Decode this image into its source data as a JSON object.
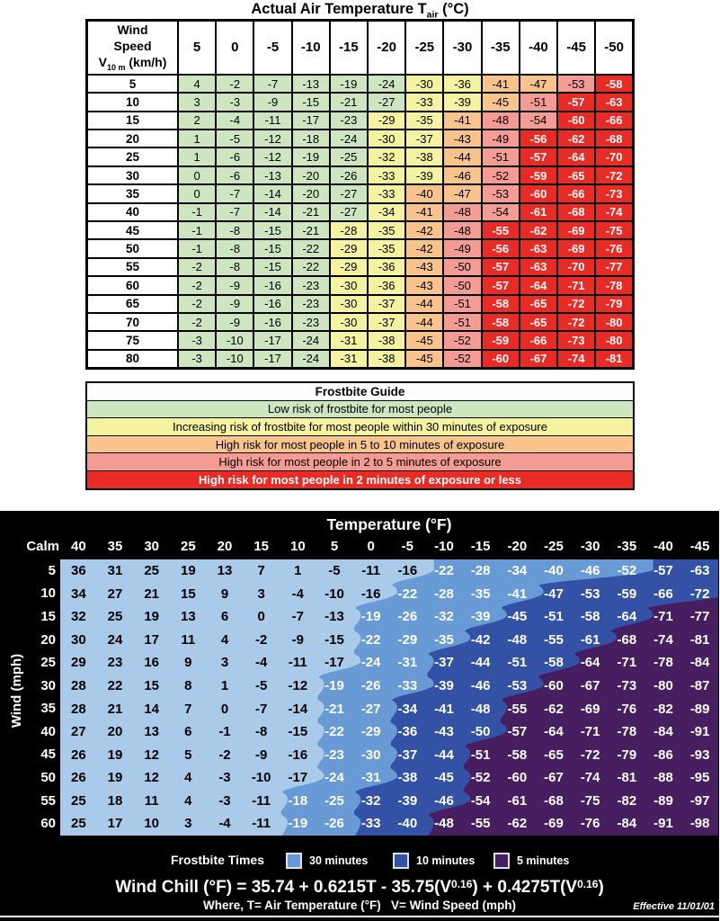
{
  "celsius_section": {
    "title_prefix": "Actual Air Temperature T",
    "title_sub": "air",
    "title_suffix": " (°C)",
    "corner_line1": "Wind",
    "corner_line2": "Speed",
    "corner_v": "V",
    "corner_v_sub": "10 m",
    "corner_v_suffix": " (km/h)",
    "risk_colors": {
      "low": "#cde6c0",
      "increasing": "#f5f2a0",
      "high_5_10": "#f8c48c",
      "high_2_5": "#f49b94",
      "high_2": "#e92b25"
    },
    "risk_thresholds": [
      {
        "min": -27,
        "key": "low"
      },
      {
        "min": -39,
        "key": "increasing"
      },
      {
        "min": -47,
        "key": "high_5_10"
      },
      {
        "min": -54,
        "key": "high_2_5"
      },
      {
        "min": -9999,
        "key": "high_2"
      }
    ]
  },
  "frostbite_guide": {
    "title": "Frostbite Guide",
    "rows": [
      {
        "label": "Low risk of frostbite for most people",
        "key": "low"
      },
      {
        "label": "Increasing risk of frostbite for most people within 30 minutes of exposure",
        "key": "increasing"
      },
      {
        "label": "High risk for most people in 5 to 10 minutes of exposure",
        "key": "high_5_10"
      },
      {
        "label": "High risk for most people in 2 to 5 minutes of exposure",
        "key": "high_2_5"
      },
      {
        "label": "High risk for most people in 2 minutes of exposure or less",
        "key": "high_2"
      }
    ]
  },
  "fahrenheit_section": {
    "zone_colors": {
      "base": "#a9cbe9",
      "thirty": "#689bd5",
      "ten": "#3452a5",
      "five": "#471f60"
    },
    "legend_title": "Frostbite Times",
    "legend_items": [
      {
        "label": "30 minutes",
        "key": "thirty"
      },
      {
        "label": "10 minutes",
        "key": "ten"
      },
      {
        "label": "5 minutes",
        "key": "five"
      }
    ],
    "formula_parts": [
      "Wind Chill (°F) = 35.74 + 0.6215T - 35.75(V",
      "0.16",
      ") + 0.4275T(V",
      "0.16",
      ")"
    ],
    "where_line": "Where, T= Air Temperature (°F)   V= Wind Speed (mph)",
    "effective": "Effective 11/01/01"
  },
  "chart_data": [
    {
      "type": "heatmap",
      "title": "Actual Air Temperature Tair (°C)",
      "ylabel": "Wind Speed V10 m (km/h)",
      "columns": [
        5,
        0,
        -5,
        -10,
        -15,
        -20,
        -25,
        -30,
        -35,
        -40,
        -45,
        -50
      ],
      "rows": [
        5,
        10,
        15,
        20,
        25,
        30,
        35,
        40,
        45,
        50,
        55,
        60,
        65,
        70,
        75,
        80
      ],
      "values": [
        [
          4,
          -2,
          -7,
          -13,
          -19,
          -24,
          -30,
          -36,
          -41,
          -47,
          -53,
          -58
        ],
        [
          3,
          -3,
          -9,
          -15,
          -21,
          -27,
          -33,
          -39,
          -45,
          -51,
          -57,
          -63
        ],
        [
          2,
          -4,
          -11,
          -17,
          -23,
          -29,
          -35,
          -41,
          -48,
          -54,
          -60,
          -66
        ],
        [
          1,
          -5,
          -12,
          -18,
          -24,
          -30,
          -37,
          -43,
          -49,
          -56,
          -62,
          -68
        ],
        [
          1,
          -6,
          -12,
          -19,
          -25,
          -32,
          -38,
          -44,
          -51,
          -57,
          -64,
          -70
        ],
        [
          0,
          -6,
          -13,
          -20,
          -26,
          -33,
          -39,
          -46,
          -52,
          -59,
          -65,
          -72
        ],
        [
          0,
          -7,
          -14,
          -20,
          -27,
          -33,
          -40,
          -47,
          -53,
          -60,
          -66,
          -73
        ],
        [
          -1,
          -7,
          -14,
          -21,
          -27,
          -34,
          -41,
          -48,
          -54,
          -61,
          -68,
          -74
        ],
        [
          -1,
          -8,
          -15,
          -21,
          -28,
          -35,
          -42,
          -48,
          -55,
          -62,
          -69,
          -75
        ],
        [
          -1,
          -8,
          -15,
          -22,
          -29,
          -35,
          -42,
          -49,
          -56,
          -63,
          -69,
          -76
        ],
        [
          -2,
          -8,
          -15,
          -22,
          -29,
          -36,
          -43,
          -50,
          -57,
          -63,
          -70,
          -77
        ],
        [
          -2,
          -9,
          -16,
          -23,
          -30,
          -36,
          -43,
          -50,
          -57,
          -64,
          -71,
          -78
        ],
        [
          -2,
          -9,
          -16,
          -23,
          -30,
          -37,
          -44,
          -51,
          -58,
          -65,
          -72,
          -79
        ],
        [
          -2,
          -9,
          -16,
          -23,
          -30,
          -37,
          -44,
          -51,
          -58,
          -65,
          -72,
          -80
        ],
        [
          -3,
          -10,
          -17,
          -24,
          -31,
          -38,
          -45,
          -52,
          -59,
          -66,
          -73,
          -80
        ],
        [
          -3,
          -10,
          -17,
          -24,
          -31,
          -38,
          -45,
          -52,
          -60,
          -67,
          -74,
          -81
        ]
      ],
      "color_scale": [
        {
          "range": ">= -27",
          "color": "#cde6c0",
          "meaning": "Low risk of frostbite for most people"
        },
        {
          "range": "-28 to -39",
          "color": "#f5f2a0",
          "meaning": "Increasing risk of frostbite for most people within 30 minutes of exposure"
        },
        {
          "range": "-40 to -47",
          "color": "#f8c48c",
          "meaning": "High risk for most people in 5 to 10 minutes of exposure"
        },
        {
          "range": "-48 to -54",
          "color": "#f49b94",
          "meaning": "High risk for most people in 2 to 5 minutes of exposure"
        },
        {
          "range": "<= -55",
          "color": "#e92b25",
          "meaning": "High risk for most people in 2 minutes of exposure or less"
        }
      ]
    },
    {
      "type": "heatmap",
      "title": "Temperature (°F)",
      "ylabel": "Wind (mph)",
      "calm_label": "Calm",
      "columns": [
        40,
        35,
        30,
        25,
        20,
        15,
        10,
        5,
        0,
        -5,
        -10,
        -15,
        -20,
        -25,
        -30,
        -35,
        -40,
        -45
      ],
      "rows": [
        5,
        10,
        15,
        20,
        25,
        30,
        35,
        40,
        45,
        50,
        55,
        60
      ],
      "values": [
        [
          36,
          31,
          25,
          19,
          13,
          7,
          1,
          -5,
          -11,
          -16,
          -22,
          -28,
          -34,
          -40,
          -46,
          -52,
          -57,
          -63
        ],
        [
          34,
          27,
          21,
          15,
          9,
          3,
          -4,
          -10,
          -16,
          -22,
          -28,
          -35,
          -41,
          -47,
          -53,
          -59,
          -66,
          -72
        ],
        [
          32,
          25,
          19,
          13,
          6,
          0,
          -7,
          -13,
          -19,
          -26,
          -32,
          -39,
          -45,
          -51,
          -58,
          -64,
          -71,
          -77
        ],
        [
          30,
          24,
          17,
          11,
          4,
          -2,
          -9,
          -15,
          -22,
          -29,
          -35,
          -42,
          -48,
          -55,
          -61,
          -68,
          -74,
          -81
        ],
        [
          29,
          23,
          16,
          9,
          3,
          -4,
          -11,
          -17,
          -24,
          -31,
          -37,
          -44,
          -51,
          -58,
          -64,
          -71,
          -78,
          -84
        ],
        [
          28,
          22,
          15,
          8,
          1,
          -5,
          -12,
          -19,
          -26,
          -33,
          -39,
          -46,
          -53,
          -60,
          -67,
          -73,
          -80,
          -87
        ],
        [
          28,
          21,
          14,
          7,
          0,
          -7,
          -14,
          -21,
          -27,
          -34,
          -41,
          -48,
          -55,
          -62,
          -69,
          -76,
          -82,
          -89
        ],
        [
          27,
          20,
          13,
          6,
          -1,
          -8,
          -15,
          -22,
          -29,
          -36,
          -43,
          -50,
          -57,
          -64,
          -71,
          -78,
          -84,
          -91
        ],
        [
          26,
          19,
          12,
          5,
          -2,
          -9,
          -16,
          -23,
          -30,
          -37,
          -44,
          -51,
          -58,
          -65,
          -72,
          -79,
          -86,
          -93
        ],
        [
          26,
          19,
          12,
          4,
          -3,
          -10,
          -17,
          -24,
          -31,
          -38,
          -45,
          -52,
          -60,
          -67,
          -74,
          -81,
          -88,
          -95
        ],
        [
          25,
          18,
          11,
          4,
          -3,
          -11,
          -18,
          -25,
          -32,
          -39,
          -46,
          -54,
          -61,
          -68,
          -75,
          -82,
          -89,
          -97
        ],
        [
          25,
          17,
          10,
          3,
          -4,
          -11,
          -19,
          -26,
          -33,
          -40,
          -48,
          -55,
          -62,
          -69,
          -76,
          -84,
          -91,
          -98
        ]
      ],
      "frostbite_zone_start_col": {
        "thirty": [
          10,
          9,
          8,
          8,
          8,
          7,
          7,
          7,
          7,
          7,
          6,
          6
        ],
        "ten": [
          16,
          13,
          12,
          11,
          10,
          10,
          9,
          9,
          9,
          9,
          8,
          8
        ],
        "five": [
          18,
          18,
          16,
          15,
          14,
          13,
          12,
          12,
          11,
          11,
          11,
          10
        ]
      },
      "legend_entries": [
        "30 minutes",
        "10 minutes",
        "5 minutes"
      ]
    }
  ]
}
